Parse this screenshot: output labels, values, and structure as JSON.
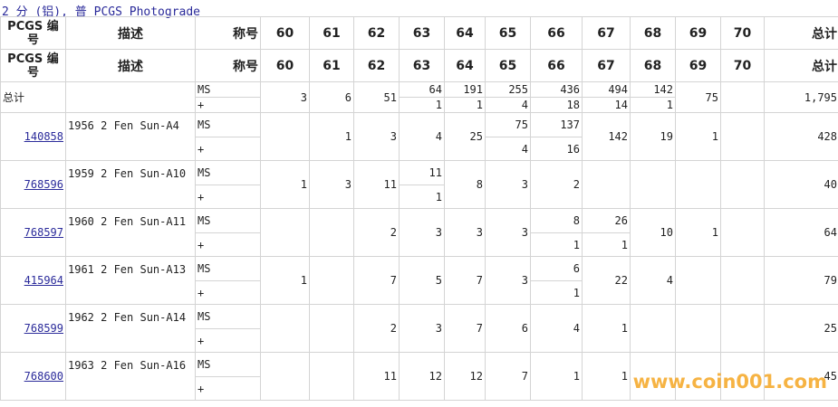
{
  "title": "2 分 (铝), 普 PCGS Photograde",
  "headers": {
    "pcgs": "PCGS 编号",
    "desc": "描述",
    "designation": "称号",
    "grades": [
      "60",
      "61",
      "62",
      "63",
      "64",
      "65",
      "66",
      "67",
      "68",
      "69",
      "70"
    ],
    "total": "总计"
  },
  "rows": [
    {
      "pcgs": "",
      "desc": "总计",
      "link": false,
      "ms": "MS",
      "plus": "+",
      "cells": [
        {
          "v": "3"
        },
        {
          "v": "6"
        },
        {
          "v": "51"
        },
        {
          "v": "64",
          "p": "1"
        },
        {
          "v": "191",
          "p": "1"
        },
        {
          "v": "255",
          "p": "4"
        },
        {
          "v": "436",
          "p": "18"
        },
        {
          "v": "494",
          "p": "14"
        },
        {
          "v": "142",
          "p": "1"
        },
        {
          "v": "75"
        },
        {
          "v": ""
        }
      ],
      "total": "1,795"
    },
    {
      "pcgs": "140858",
      "desc": "1956 2 Fen Sun-A4",
      "link": true,
      "ms": "MS",
      "plus": "+",
      "cells": [
        {
          "v": ""
        },
        {
          "v": "1"
        },
        {
          "v": "3"
        },
        {
          "v": "4"
        },
        {
          "v": "25"
        },
        {
          "v": "75",
          "p": "4"
        },
        {
          "v": "137",
          "p": "16"
        },
        {
          "v": "142"
        },
        {
          "v": "19"
        },
        {
          "v": "1"
        },
        {
          "v": ""
        }
      ],
      "total": "428"
    },
    {
      "pcgs": "768596",
      "desc": "1959 2 Fen Sun-A10",
      "link": true,
      "ms": "MS",
      "plus": "+",
      "cells": [
        {
          "v": "1"
        },
        {
          "v": "3"
        },
        {
          "v": "11"
        },
        {
          "v": "11",
          "p": "1"
        },
        {
          "v": "8"
        },
        {
          "v": "3"
        },
        {
          "v": "2"
        },
        {
          "v": ""
        },
        {
          "v": ""
        },
        {
          "v": ""
        },
        {
          "v": ""
        }
      ],
      "total": "40"
    },
    {
      "pcgs": "768597",
      "desc": "1960 2 Fen Sun-A11",
      "link": true,
      "ms": "MS",
      "plus": "+",
      "cells": [
        {
          "v": ""
        },
        {
          "v": ""
        },
        {
          "v": "2"
        },
        {
          "v": "3"
        },
        {
          "v": "3"
        },
        {
          "v": "3"
        },
        {
          "v": "8",
          "p": "1"
        },
        {
          "v": "26",
          "p": "1"
        },
        {
          "v": "10"
        },
        {
          "v": "1"
        },
        {
          "v": ""
        }
      ],
      "total": "64"
    },
    {
      "pcgs": "415964",
      "desc": "1961 2 Fen Sun-A13",
      "link": true,
      "ms": "MS",
      "plus": "+",
      "cells": [
        {
          "v": "1"
        },
        {
          "v": ""
        },
        {
          "v": "7"
        },
        {
          "v": "5"
        },
        {
          "v": "7"
        },
        {
          "v": "3"
        },
        {
          "v": "6",
          "p": "1"
        },
        {
          "v": "22"
        },
        {
          "v": "4"
        },
        {
          "v": ""
        },
        {
          "v": ""
        }
      ],
      "total": "79"
    },
    {
      "pcgs": "768599",
      "desc": "1962 2 Fen Sun-A14",
      "link": true,
      "ms": "MS",
      "plus": "+",
      "cells": [
        {
          "v": ""
        },
        {
          "v": ""
        },
        {
          "v": "2"
        },
        {
          "v": "3"
        },
        {
          "v": "7"
        },
        {
          "v": "6"
        },
        {
          "v": "4"
        },
        {
          "v": "1"
        },
        {
          "v": ""
        },
        {
          "v": ""
        },
        {
          "v": ""
        }
      ],
      "total": "25"
    },
    {
      "pcgs": "768600",
      "desc": "1963 2 Fen Sun-A16",
      "link": true,
      "ms": "MS",
      "plus": "+",
      "cells": [
        {
          "v": ""
        },
        {
          "v": ""
        },
        {
          "v": "11"
        },
        {
          "v": "12"
        },
        {
          "v": "12"
        },
        {
          "v": "7"
        },
        {
          "v": "1"
        },
        {
          "v": "1"
        },
        {
          "v": ""
        },
        {
          "v": ""
        },
        {
          "v": ""
        }
      ],
      "total": "45"
    }
  ],
  "watermark": "www.coin001.com"
}
